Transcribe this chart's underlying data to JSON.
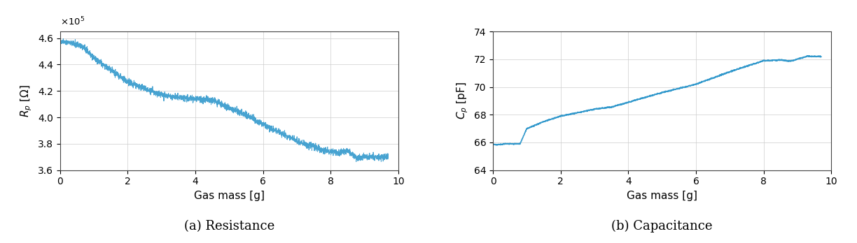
{
  "left": {
    "ylabel": "R_p [Ω]",
    "xlabel": "Gas mass [g]",
    "caption": "(a) Resistance",
    "xlim": [
      0,
      10
    ],
    "ylim": [
      360000.0,
      465000.0
    ],
    "yticks": [
      360000.0,
      380000.0,
      400000.0,
      420000.0,
      440000.0,
      460000.0
    ],
    "xticks": [
      0,
      2,
      4,
      6,
      8,
      10
    ],
    "line_color": "#3399CC"
  },
  "right": {
    "ylabel": "C_p [pF]",
    "xlabel": "Gas mass [g]",
    "caption": "(b) Capacitance",
    "xlim": [
      0,
      10
    ],
    "ylim": [
      64,
      74
    ],
    "yticks": [
      64,
      66,
      68,
      70,
      72,
      74
    ],
    "xticks": [
      0,
      2,
      4,
      6,
      8,
      10
    ],
    "line_color": "#3399CC"
  },
  "background_color": "#FFFFFF",
  "grid_color": "#CCCCCC"
}
